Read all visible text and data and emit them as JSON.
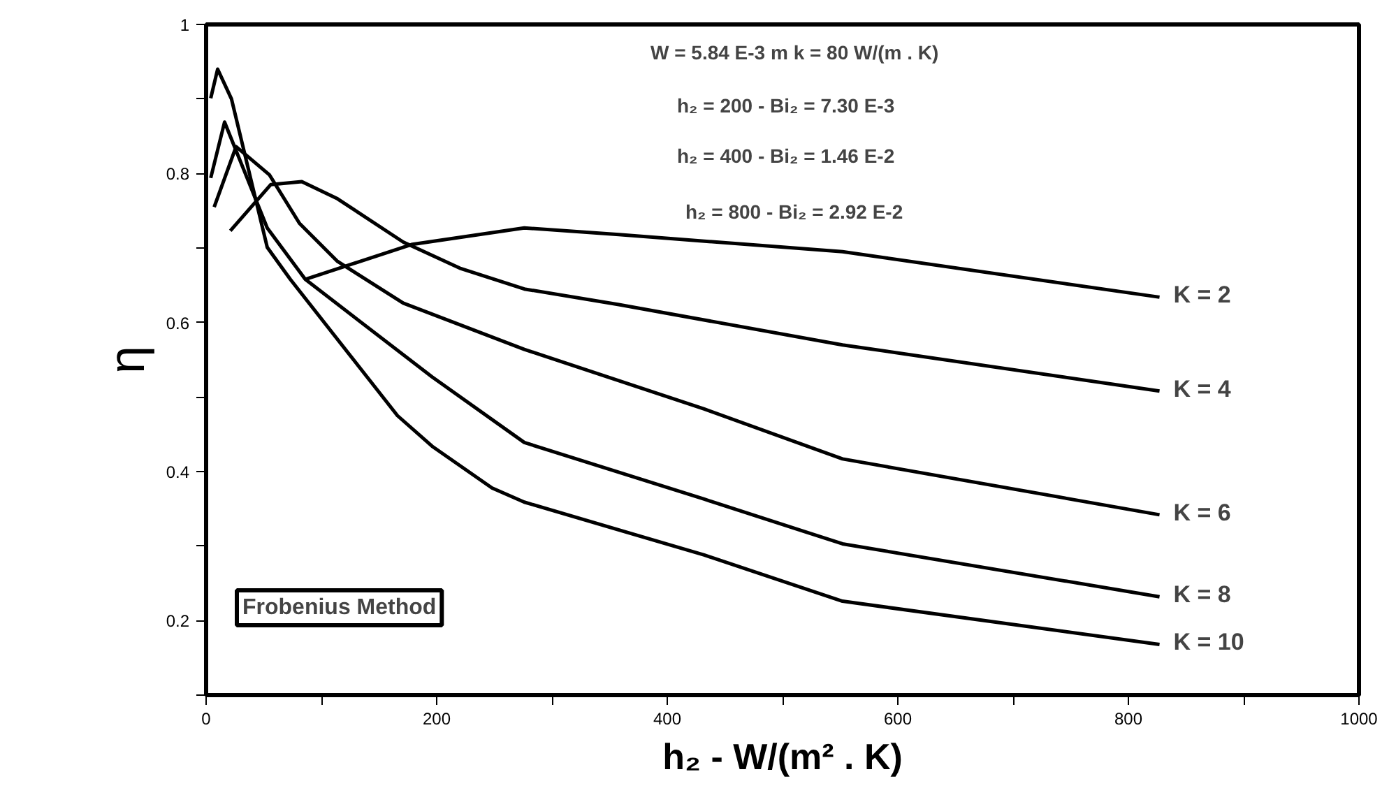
{
  "chart_data": {
    "type": "line",
    "xlabel": "h₂ - W/(m² . K)",
    "ylabel": "η",
    "annotations": [
      "W = 5.84 E-3 m  k = 80 W/(m . K)",
      "h₂ = 200    -    Bi₂ = 7.30 E-3",
      "h₂ = 400    -    Bi₂ =  1.46 E-2",
      "h₂ = 800    -    Bi₂ =  2.92 E-2",
      "Frobenius Method"
    ],
    "xlim": [
      0,
      1000
    ],
    "ylim": [
      0.1,
      1
    ],
    "xticks": [
      0,
      {
        "value": 100,
        "label": null
      },
      200,
      {
        "value": 300,
        "label": null
      },
      400,
      {
        "value": 500,
        "label": null
      },
      600,
      {
        "value": 700,
        "label": null
      },
      800,
      {
        "value": 900,
        "label": null
      },
      1000
    ],
    "yticks": [
      {
        "value": 0.1,
        "label": null
      },
      0.2,
      {
        "value": 0.3,
        "label": null
      },
      0.4,
      {
        "value": 0.5,
        "label": null
      },
      0.6,
      {
        "value": 0.7,
        "label": null
      },
      0.8,
      {
        "value": 0.9,
        "label": null
      },
      1
    ],
    "grid": false,
    "legend": false,
    "marker": "none",
    "line_style": "solid",
    "series": [
      {
        "name": "K = 2",
        "color": "#000000",
        "x": [
          86,
          179,
          276,
          358,
          552,
          827
        ],
        "values": [
          0.658,
          0.705,
          0.727,
          0.718,
          0.695,
          0.634
        ]
      },
      {
        "name": "K = 4",
        "color": "#000000",
        "x": [
          21,
          56,
          83,
          114,
          171,
          220,
          276,
          358,
          552,
          827
        ],
        "values": [
          0.723,
          0.785,
          0.789,
          0.766,
          0.708,
          0.673,
          0.645,
          0.624,
          0.57,
          0.508
        ]
      },
      {
        "name": "K = 6",
        "color": "#000000",
        "x": [
          7,
          26,
          55,
          81,
          114,
          171,
          276,
          432,
          552,
          827
        ],
        "values": [
          0.755,
          0.836,
          0.798,
          0.733,
          0.682,
          0.626,
          0.564,
          0.484,
          0.417,
          0.342
        ]
      },
      {
        "name": "K = 8",
        "color": "#000000",
        "x": [
          4,
          16,
          34,
          53,
          86,
          196,
          276,
          432,
          552,
          827
        ],
        "values": [
          0.794,
          0.869,
          0.8,
          0.727,
          0.658,
          0.527,
          0.439,
          0.363,
          0.303,
          0.232
        ]
      },
      {
        "name": "K = 10",
        "color": "#000000",
        "x": [
          4,
          10,
          22,
          53,
          73,
          166,
          196,
          248,
          276,
          432,
          552,
          827
        ],
        "values": [
          0.901,
          0.94,
          0.9,
          0.701,
          0.658,
          0.475,
          0.434,
          0.378,
          0.359,
          0.288,
          0.226,
          0.168
        ]
      }
    ]
  }
}
